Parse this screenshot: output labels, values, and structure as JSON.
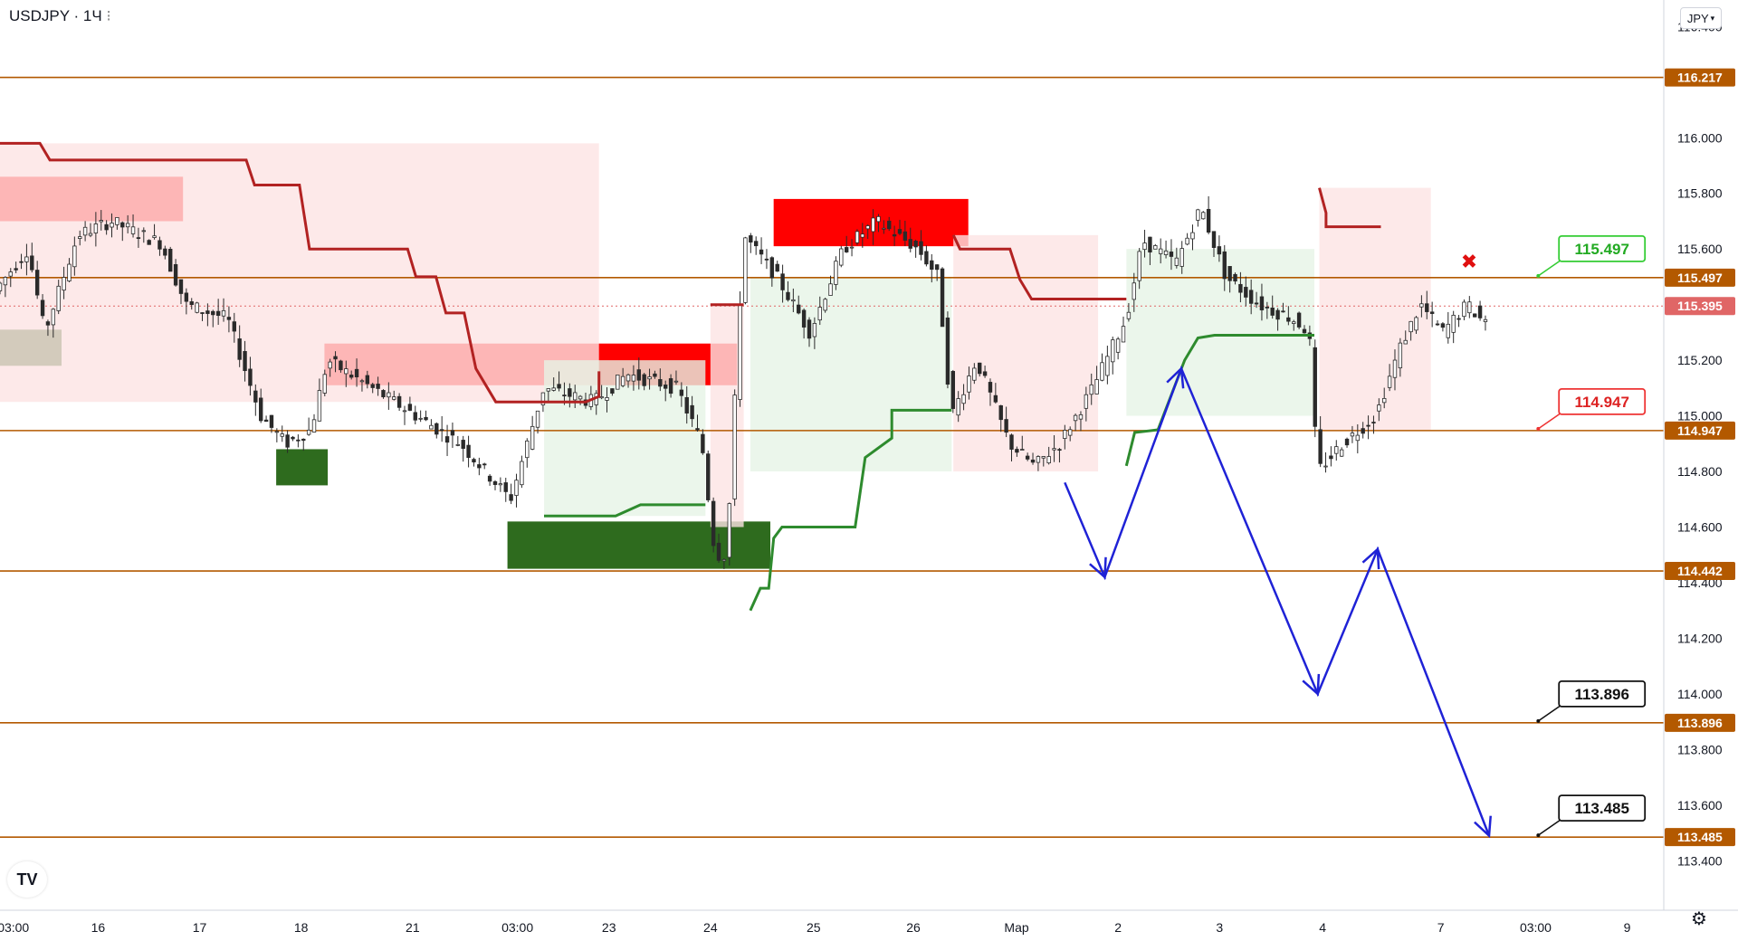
{
  "header": {
    "symbol": "USDJPY",
    "interval": "1Ч",
    "currency_button": "JPY"
  },
  "logo_text": "TV",
  "icons": {
    "settings": "gear-icon",
    "currency_dropdown": "chevron-down-icon",
    "cancel_mark": "x-icon"
  },
  "colors": {
    "resistance_zone": "#ff0000",
    "support_zone": "#2e6b1e",
    "level_line": "#b35900",
    "level_tag": "#b35900",
    "trail_red": "#b22222",
    "trail_green": "#2e8b2e",
    "projection": "#1f22d6",
    "candle": "#2a2a2a",
    "current_price_tag": "#e06666"
  },
  "chart_data": {
    "type": "candlestick",
    "symbol": "USDJPY",
    "y_axis": {
      "ticks": [
        "116.400",
        "116.000",
        "115.800",
        "115.600",
        "115.200",
        "115.000",
        "114.800",
        "114.600",
        "114.400",
        "114.200",
        "114.000",
        "113.800",
        "113.600",
        "113.400"
      ],
      "range": [
        113.3,
        116.45
      ]
    },
    "x_axis": {
      "ticks": [
        "03:00",
        "16",
        "17",
        "18",
        "21",
        "03:00",
        "23",
        "24",
        "25",
        "26",
        "Мар",
        "2",
        "3",
        "4",
        "7",
        "03:00",
        "9"
      ]
    },
    "horizontal_levels": [
      {
        "price": 116.217,
        "label": "116.217"
      },
      {
        "price": 115.497,
        "label": "115.497"
      },
      {
        "price": 114.947,
        "label": "114.947"
      },
      {
        "price": 114.442,
        "label": "114.442"
      },
      {
        "price": 113.896,
        "label": "113.896"
      },
      {
        "price": 113.485,
        "label": "113.485"
      }
    ],
    "current_price": {
      "price": 115.395,
      "label": "115.395"
    },
    "callouts": [
      {
        "label": "115.497",
        "price": 115.497,
        "style": "green"
      },
      {
        "label": "114.947",
        "price": 114.947,
        "style": "red"
      },
      {
        "label": "113.896",
        "price": 113.896,
        "style": "black"
      },
      {
        "label": "113.485",
        "price": 113.485,
        "style": "black"
      }
    ],
    "resistance_zones": [
      {
        "from": 0,
        "to": 0.11,
        "top": 115.86,
        "bottom": 115.7
      },
      {
        "from": 0.195,
        "to": 0.443,
        "top": 115.26,
        "bottom": 115.11
      },
      {
        "from": 0.465,
        "to": 0.582,
        "top": 115.78,
        "bottom": 115.61
      }
    ],
    "support_zones": [
      {
        "from": 0,
        "to": 0.037,
        "top": 115.31,
        "bottom": 115.18
      },
      {
        "from": 0.166,
        "to": 0.197,
        "top": 114.88,
        "bottom": 114.75
      },
      {
        "from": 0.305,
        "to": 0.463,
        "top": 114.62,
        "bottom": 114.45
      }
    ],
    "projection_path": [
      [
        0.64,
        114.76
      ],
      [
        0.664,
        114.42
      ],
      [
        0.71,
        115.17
      ],
      [
        0.792,
        114.0
      ],
      [
        0.828,
        114.52
      ],
      [
        0.895,
        113.49
      ]
    ],
    "notes": [
      "Forecast zigzag down toward 113.896 and 113.485"
    ]
  }
}
